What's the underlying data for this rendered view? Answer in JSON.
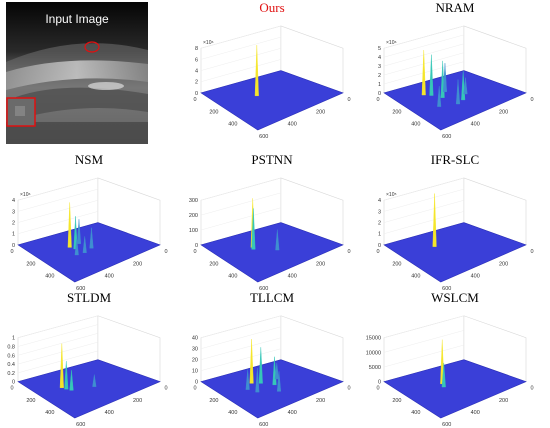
{
  "input": {
    "label": "Input Image"
  },
  "panels": [
    {
      "id": "ours",
      "title": "Ours",
      "title_color": "#e01010",
      "exp": "×10⁶",
      "z_ticks": [
        "0",
        "2",
        "4",
        "6",
        "8"
      ],
      "xy_ticks": [
        "0",
        "200",
        "400",
        "600"
      ]
    },
    {
      "id": "nram",
      "title": "NRAM",
      "title_color": "#000000",
      "exp": "×10⁶",
      "z_ticks": [
        "0",
        "1",
        "2",
        "3",
        "4",
        "5"
      ],
      "xy_ticks": [
        "0",
        "200",
        "400",
        "600"
      ]
    },
    {
      "id": "nsm",
      "title": "NSM",
      "title_color": "#000000",
      "exp": "×10⁶",
      "z_ticks": [
        "0",
        "1",
        "2",
        "3",
        "4"
      ],
      "xy_ticks": [
        "0",
        "200",
        "400",
        "600"
      ]
    },
    {
      "id": "pstnn",
      "title": "PSTNN",
      "title_color": "#000000",
      "exp": "",
      "z_ticks": [
        "0",
        "100",
        "200",
        "300"
      ],
      "xy_ticks": [
        "0",
        "200",
        "400",
        "600"
      ]
    },
    {
      "id": "ifrslc",
      "title": "IFR-SLC",
      "title_color": "#000000",
      "exp": "×10⁵",
      "z_ticks": [
        "0",
        "1",
        "2",
        "3",
        "4"
      ],
      "xy_ticks": [
        "0",
        "200",
        "400",
        "600"
      ]
    },
    {
      "id": "stldm",
      "title": "STLDM",
      "title_color": "#000000",
      "exp": "",
      "z_ticks": [
        "0",
        "0.2",
        "0.4",
        "0.6",
        "0.8",
        "1"
      ],
      "xy_ticks": [
        "0",
        "200",
        "400",
        "600"
      ]
    },
    {
      "id": "tllcm",
      "title": "TLLCM",
      "title_color": "#000000",
      "exp": "",
      "z_ticks": [
        "0",
        "10",
        "20",
        "30",
        "40"
      ],
      "xy_ticks": [
        "0",
        "200",
        "400",
        "600"
      ]
    },
    {
      "id": "wslcm",
      "title": "WSLCM",
      "title_color": "#000000",
      "exp": "",
      "z_ticks": [
        "0",
        "5000",
        "10000",
        "15000"
      ],
      "xy_ticks": [
        "0",
        "200",
        "400",
        "600"
      ]
    }
  ],
  "colors": {
    "surface": "#3a3fd8",
    "surface_edge": "#2a2fb8",
    "peak_hi": "#f5e62a",
    "peak_mid": "#36c7b8",
    "peak_low": "#3f8fd0",
    "axis": "#555555"
  }
}
